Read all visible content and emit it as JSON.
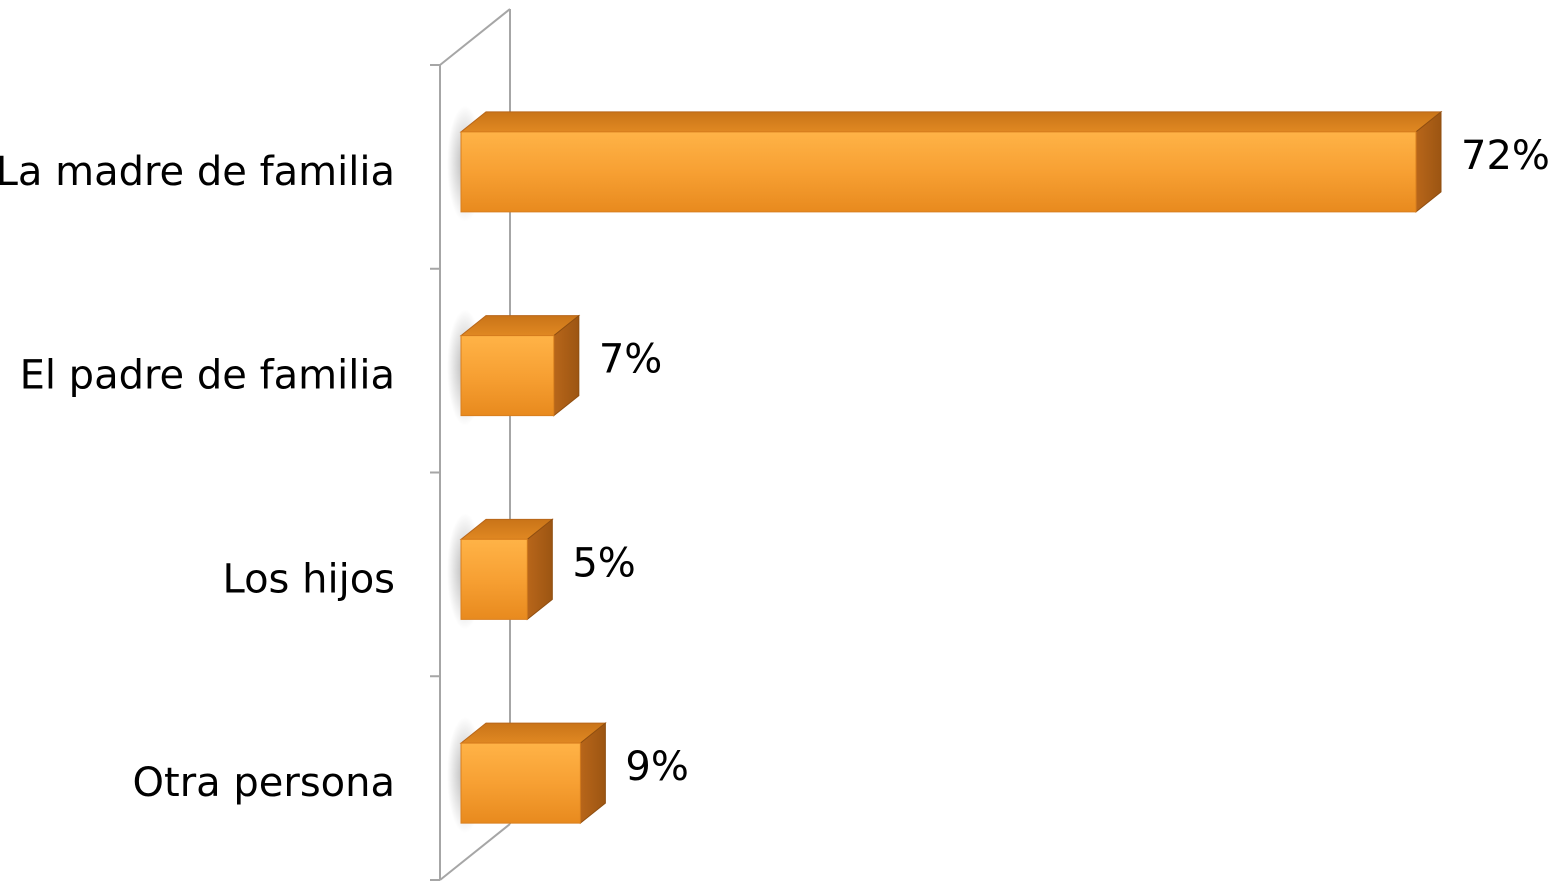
{
  "chart_data": {
    "type": "bar",
    "orientation": "horizontal",
    "style": "3d",
    "categories": [
      "La madre de familia",
      "El padre de familia",
      "Los hijos",
      "Otra persona"
    ],
    "values": [
      72,
      7,
      5,
      9
    ],
    "value_labels": [
      "72%",
      "7%",
      "5%",
      "9%"
    ],
    "value_unit": "%",
    "xlim": [
      0,
      72
    ],
    "grid": false,
    "legend": "none",
    "colors": {
      "bar_front": "#F7A033",
      "bar_top": "#D77F1E",
      "bar_side": "#B8681A",
      "axis_wall": "#A6A6A6"
    }
  }
}
